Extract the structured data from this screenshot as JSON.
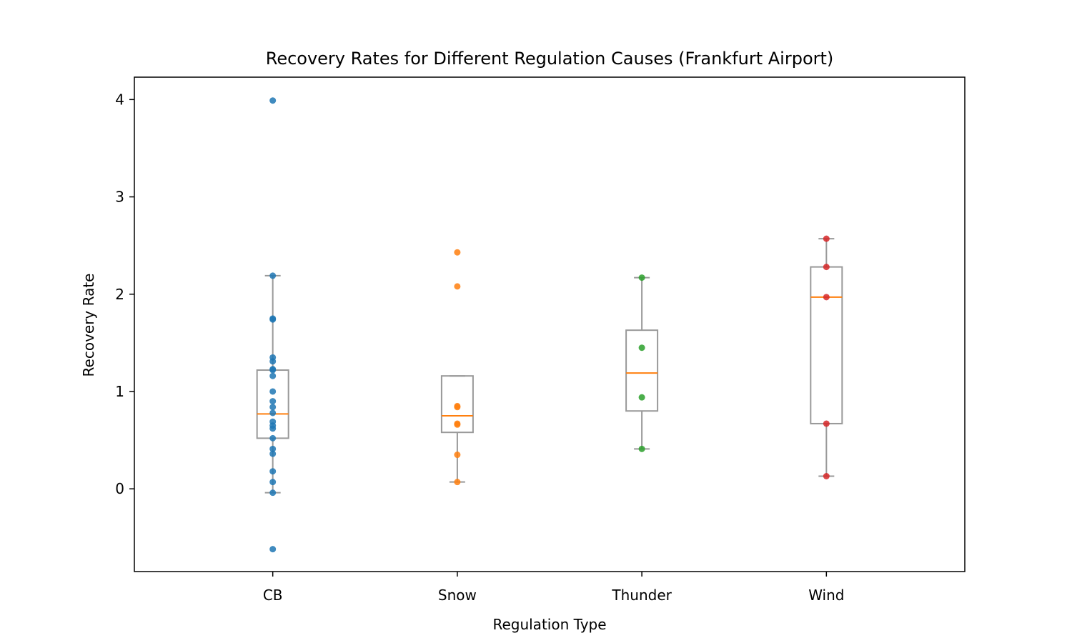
{
  "chart_data": {
    "type": "box",
    "title": "Recovery Rates for Different Regulation Causes (Frankfurt Airport)",
    "xlabel": "Regulation Type",
    "ylabel": "Recovery Rate",
    "categories": [
      "CB",
      "Snow",
      "Thunder",
      "Wind"
    ],
    "ylim": [
      -0.85,
      4.23
    ],
    "yticks": [
      "0",
      "1",
      "2",
      "3",
      "4"
    ],
    "grid": false,
    "box_color": "#999999",
    "median_color": "#ff7f0e",
    "series": [
      {
        "category": "CB",
        "color": "#1f77b4",
        "q1": 0.52,
        "median": 0.77,
        "q3": 1.22,
        "whisker_low": -0.04,
        "whisker_high": 2.19,
        "points": [
          3.99,
          2.19,
          1.75,
          1.74,
          1.35,
          1.31,
          1.23,
          1.22,
          1.16,
          1.0,
          0.9,
          0.84,
          0.78,
          0.69,
          0.65,
          0.62,
          0.52,
          0.41,
          0.36,
          0.18,
          0.07,
          -0.04,
          -0.62
        ]
      },
      {
        "category": "Snow",
        "color": "#ff7f0e",
        "q1": 0.58,
        "median": 0.75,
        "q3": 1.16,
        "whisker_low": 0.07,
        "whisker_high": 1.16,
        "points": [
          2.43,
          2.08,
          0.85,
          0.84,
          0.67,
          0.66,
          0.35,
          0.07
        ]
      },
      {
        "category": "Thunder",
        "color": "#2ca02c",
        "q1": 0.8,
        "median": 1.19,
        "q3": 1.63,
        "whisker_low": 0.41,
        "whisker_high": 2.17,
        "points": [
          2.17,
          1.45,
          0.94,
          0.41
        ]
      },
      {
        "category": "Wind",
        "color": "#d62728",
        "q1": 0.67,
        "median": 1.97,
        "q3": 2.28,
        "whisker_low": 0.13,
        "whisker_high": 2.57,
        "points": [
          2.57,
          2.28,
          1.97,
          0.67,
          0.13
        ]
      }
    ]
  }
}
